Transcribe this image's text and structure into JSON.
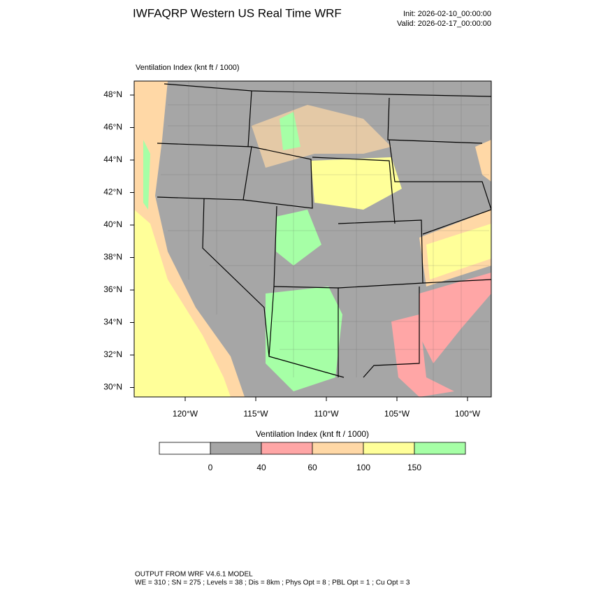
{
  "header": {
    "title": "IWFAQRP Western US Real Time WRF",
    "init": "Init: 2026-02-10_00:00:00",
    "valid": "Valid: 2026-02-17_00:00:00"
  },
  "map": {
    "label": "Ventilation Index   (knt ft / 1000)",
    "lat_labels": [
      "48°N",
      "46°N",
      "44°N",
      "42°N",
      "40°N",
      "38°N",
      "36°N",
      "34°N",
      "32°N",
      "30°N"
    ],
    "lon_labels": [
      "120°W",
      "115°W",
      "110°W",
      "105°W",
      "100°W"
    ]
  },
  "colorbar": {
    "title": "Ventilation Index   (knt ft / 1000)",
    "colors": [
      "#ffffff",
      "#a6a6a6",
      "#ffa6a6",
      "#ffd8a6",
      "#ffff99",
      "#a6ffa6"
    ],
    "labels": [
      "0",
      "40",
      "60",
      "100",
      "150"
    ]
  },
  "footer": {
    "line1": "OUTPUT FROM WRF V4.6.1 MODEL",
    "line2": "WE = 310 ; SN = 275 ; Levels = 38 ; Dis = 8km ; Phys Opt = 8 ; PBL Opt = 1 ; Cu Opt = 3"
  }
}
